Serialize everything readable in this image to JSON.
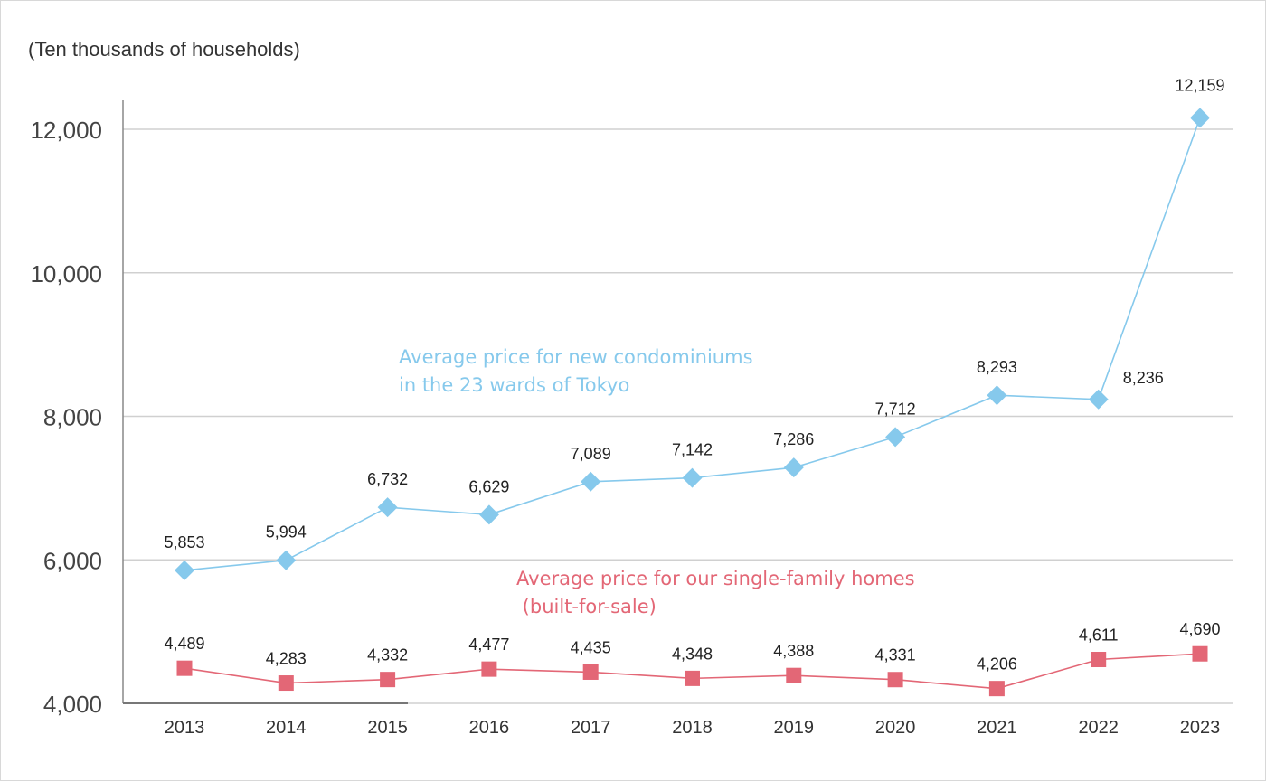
{
  "chart_data": {
    "type": "line",
    "unit_label": "(Ten thousands of households)",
    "categories": [
      "2013",
      "2014",
      "2015",
      "2016",
      "2017",
      "2018",
      "2019",
      "2020",
      "2021",
      "2022",
      "2023"
    ],
    "ylim": [
      4000,
      12400
    ],
    "yticks": [
      4000,
      6000,
      8000,
      10000,
      12000
    ],
    "ytick_labels": [
      "4,000",
      "6,000",
      "8,000",
      "10,000",
      "12,000"
    ],
    "grid": true,
    "series": [
      {
        "name": "Average price for new condominiums in the 23 wards of Tokyo",
        "name_lines": [
          "Average price for new condominiums",
          "in the 23 wards of Tokyo"
        ],
        "marker": "diamond",
        "color": "#86c9ec",
        "values": [
          5853,
          5994,
          6732,
          6629,
          7089,
          7142,
          7286,
          7712,
          8293,
          8236,
          12159
        ],
        "labels": [
          "5,853",
          "5,994",
          "6,732",
          "6,629",
          "7,089",
          "7,142",
          "7,286",
          "7,712",
          "8,293",
          "8,236",
          "12,159"
        ]
      },
      {
        "name": "Average price for our single-family homes (built-for-sale)",
        "name_lines": [
          "Average price for our single-family homes",
          " (built-for-sale)"
        ],
        "marker": "square",
        "color": "#e36776",
        "values": [
          4489,
          4283,
          4332,
          4477,
          4435,
          4348,
          4388,
          4331,
          4206,
          4611,
          4690
        ],
        "labels": [
          "4,489",
          "4,283",
          "4,332",
          "4,477",
          "4,435",
          "4,348",
          "4,388",
          "4,331",
          "4,206",
          "4,611",
          "4,690"
        ]
      }
    ]
  }
}
